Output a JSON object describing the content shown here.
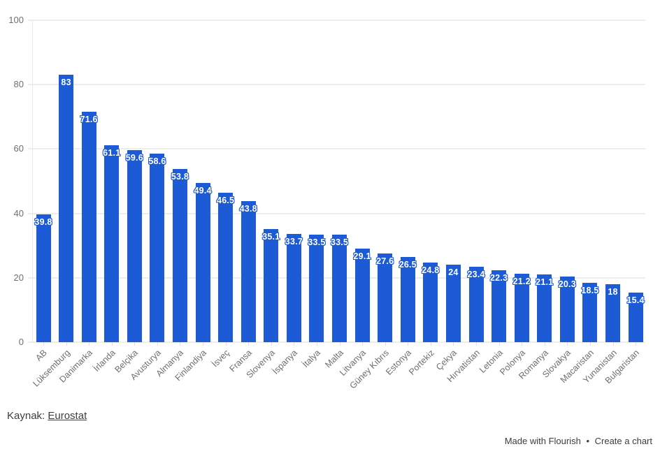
{
  "chart_data": {
    "type": "bar",
    "title": "",
    "xlabel": "",
    "ylabel": "",
    "categories": [
      "AB",
      "Lüksemburg",
      "Danimarka",
      "İrlanda",
      "Belçika",
      "Avusturya",
      "Almanya",
      "Finlandiya",
      "İsveç",
      "Fransa",
      "Slovenya",
      "İspanya",
      "İtalya",
      "Malta",
      "Litvanya",
      "Güney Kıbrıs",
      "Estonya",
      "Portekiz",
      "Çekya",
      "Hırvatistan",
      "Letonia",
      "Polonya",
      "Romanya",
      "Slovakya",
      "Macaristan",
      "Yunanistan",
      "Bulgaristan"
    ],
    "values": [
      39.8,
      83,
      71.6,
      61.1,
      59.6,
      58.6,
      53.8,
      49.4,
      46.5,
      43.8,
      35.1,
      33.7,
      33.5,
      33.5,
      29.1,
      27.6,
      26.5,
      24.8,
      24,
      23.4,
      22.3,
      21.2,
      21.1,
      20.3,
      18.5,
      18,
      15.4
    ],
    "ylim": [
      0,
      100
    ],
    "yticks": [
      0,
      20,
      40,
      60,
      80,
      100
    ],
    "grid": true,
    "legend": "none",
    "bar_color": "#1c5ad6",
    "value_label_color": "#ffffff",
    "value_label_outline_color": "#1c5ad6",
    "axis_text_color": "#6f6f6f",
    "gridline_color": "#ededed"
  },
  "source": {
    "prefix": "Kaynak:",
    "link_text": "Eurostat"
  },
  "attribution": {
    "made_with": "Made with Flourish",
    "separator": "•",
    "create_chart": "Create a chart"
  }
}
